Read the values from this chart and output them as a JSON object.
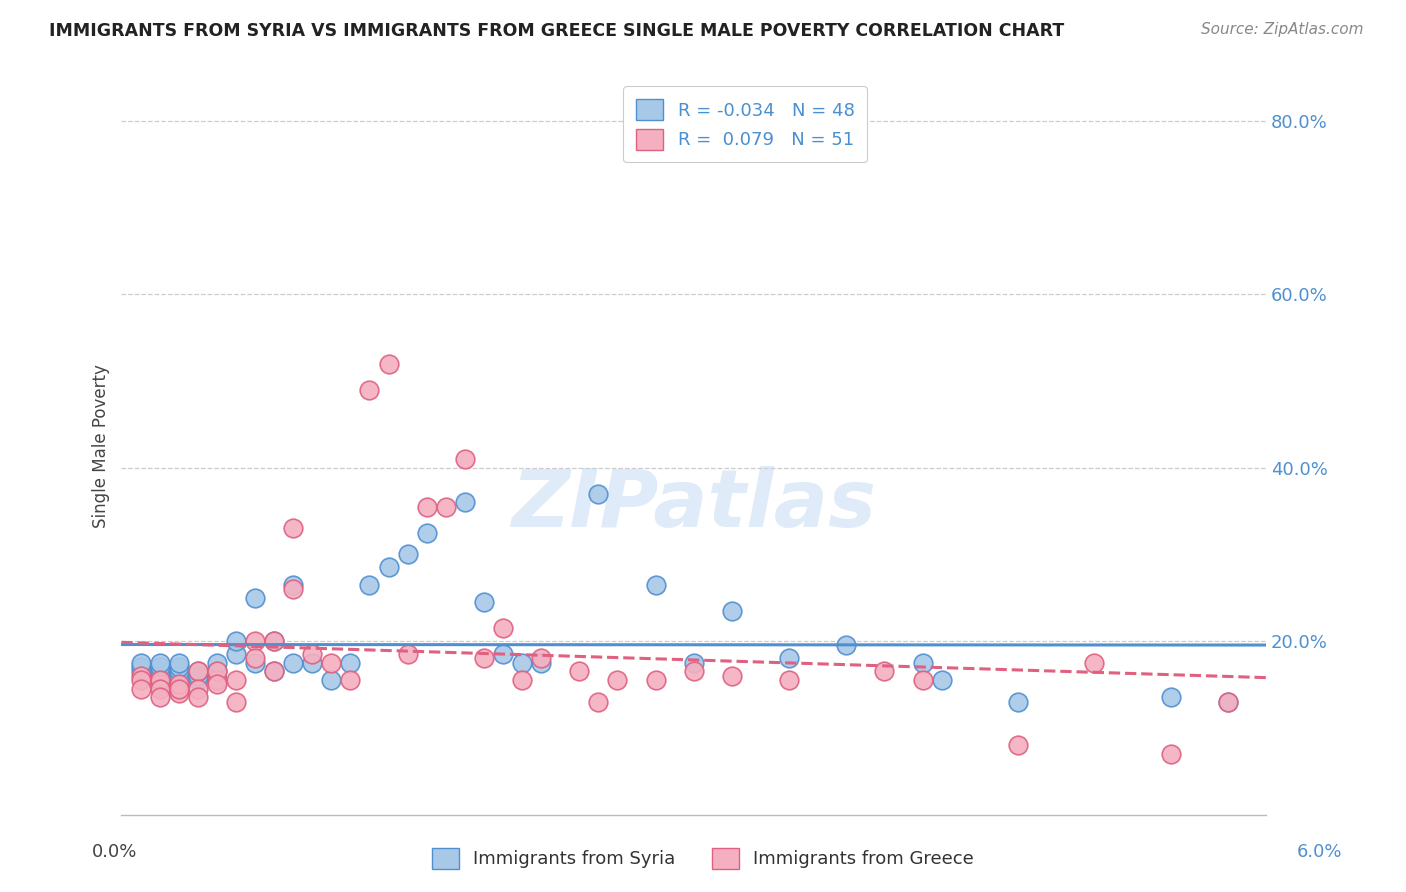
{
  "title": "IMMIGRANTS FROM SYRIA VS IMMIGRANTS FROM GREECE SINGLE MALE POVERTY CORRELATION CHART",
  "source": "Source: ZipAtlas.com",
  "ylabel": "Single Male Poverty",
  "xlim": [
    0.0,
    0.06
  ],
  "ylim": [
    0.0,
    0.85
  ],
  "watermark": "ZIPatlas",
  "legend_r_syria": "R = -0.034",
  "legend_n_syria": "N = 48",
  "legend_r_greece": "R =  0.079",
  "legend_n_greece": "N = 51",
  "color_syria": "#a8c8e8",
  "color_greece": "#f4b0c0",
  "line_color_syria": "#5090d0",
  "line_color_greece": "#e06080",
  "background_color": "#ffffff",
  "syria_x": [
    0.001,
    0.001,
    0.001,
    0.002,
    0.002,
    0.002,
    0.002,
    0.003,
    0.003,
    0.003,
    0.003,
    0.004,
    0.004,
    0.004,
    0.005,
    0.005,
    0.005,
    0.006,
    0.006,
    0.007,
    0.007,
    0.008,
    0.008,
    0.009,
    0.009,
    0.01,
    0.011,
    0.012,
    0.013,
    0.014,
    0.015,
    0.016,
    0.018,
    0.019,
    0.02,
    0.021,
    0.022,
    0.025,
    0.028,
    0.03,
    0.032,
    0.035,
    0.038,
    0.042,
    0.043,
    0.047,
    0.055,
    0.058
  ],
  "syria_y": [
    0.165,
    0.17,
    0.175,
    0.16,
    0.165,
    0.17,
    0.175,
    0.16,
    0.165,
    0.17,
    0.175,
    0.155,
    0.16,
    0.165,
    0.155,
    0.165,
    0.175,
    0.185,
    0.2,
    0.175,
    0.25,
    0.165,
    0.2,
    0.175,
    0.265,
    0.175,
    0.155,
    0.175,
    0.265,
    0.285,
    0.3,
    0.325,
    0.36,
    0.245,
    0.185,
    0.175,
    0.175,
    0.37,
    0.265,
    0.175,
    0.235,
    0.18,
    0.195,
    0.175,
    0.155,
    0.13,
    0.135,
    0.13
  ],
  "greece_x": [
    0.001,
    0.001,
    0.001,
    0.002,
    0.002,
    0.002,
    0.002,
    0.003,
    0.003,
    0.003,
    0.003,
    0.004,
    0.004,
    0.004,
    0.005,
    0.005,
    0.005,
    0.006,
    0.006,
    0.007,
    0.007,
    0.008,
    0.008,
    0.009,
    0.009,
    0.01,
    0.011,
    0.012,
    0.013,
    0.014,
    0.015,
    0.016,
    0.017,
    0.018,
    0.019,
    0.02,
    0.021,
    0.022,
    0.024,
    0.025,
    0.026,
    0.028,
    0.03,
    0.032,
    0.035,
    0.04,
    0.042,
    0.047,
    0.051,
    0.055,
    0.058
  ],
  "greece_y": [
    0.16,
    0.155,
    0.145,
    0.15,
    0.155,
    0.145,
    0.135,
    0.145,
    0.14,
    0.15,
    0.145,
    0.165,
    0.145,
    0.135,
    0.155,
    0.165,
    0.15,
    0.155,
    0.13,
    0.2,
    0.18,
    0.165,
    0.2,
    0.26,
    0.33,
    0.185,
    0.175,
    0.155,
    0.49,
    0.52,
    0.185,
    0.355,
    0.355,
    0.41,
    0.18,
    0.215,
    0.155,
    0.18,
    0.165,
    0.13,
    0.155,
    0.155,
    0.165,
    0.16,
    0.155,
    0.165,
    0.155,
    0.08,
    0.175,
    0.07,
    0.13
  ]
}
